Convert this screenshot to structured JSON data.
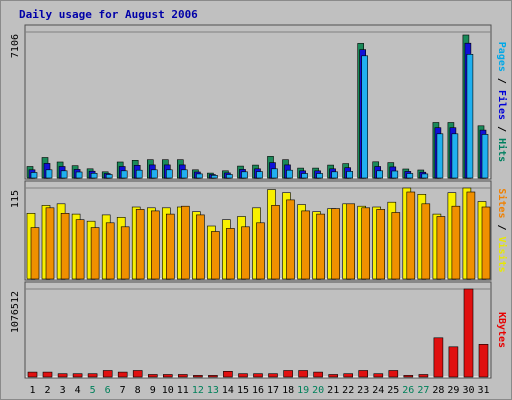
{
  "chart_data": {
    "type": "bar",
    "title": "Daily usage for August 2006",
    "categories": [
      "1",
      "2",
      "3",
      "4",
      "5",
      "6",
      "7",
      "8",
      "9",
      "10",
      "11",
      "12",
      "13",
      "14",
      "15",
      "16",
      "17",
      "18",
      "19",
      "20",
      "21",
      "22",
      "23",
      "24",
      "25",
      "26",
      "27",
      "28",
      "29",
      "30",
      "31"
    ],
    "weekend_days": [
      "5",
      "6",
      "12",
      "13",
      "19",
      "20",
      "26",
      "27"
    ],
    "panels": [
      {
        "id": "hits",
        "ymax": 7106,
        "ymax_label": "7106",
        "right_label": [
          {
            "text": "Pages",
            "color": "#00a8e8"
          },
          {
            "text": " / ",
            "color": "#000000"
          },
          {
            "text": "Files",
            "color": "#0000d8"
          },
          {
            "text": " / ",
            "color": "#000000"
          },
          {
            "text": "Hits",
            "color": "#008060"
          }
        ],
        "series": [
          {
            "name": "Hits",
            "color": "#1a8a5a",
            "values": [
              560,
              1000,
              780,
              600,
              450,
              300,
              780,
              860,
              890,
              890,
              890,
              400,
              240,
              350,
              580,
              630,
              1050,
              890,
              480,
              480,
              630,
              700,
              6550,
              790,
              750,
              440,
              390,
              2700,
              2700,
              6960,
              2540
            ]
          },
          {
            "name": "Files",
            "color": "#1010d8",
            "values": [
              400,
              710,
              560,
              420,
              330,
              220,
              560,
              620,
              640,
              640,
              640,
              290,
              170,
              250,
              420,
              450,
              750,
              640,
              350,
              350,
              450,
              500,
              6250,
              560,
              540,
              320,
              280,
              2450,
              2450,
              6560,
              2330
            ]
          },
          {
            "name": "Pages",
            "color": "#20b0f0",
            "values": [
              270,
              400,
              350,
              290,
              230,
              170,
              350,
              380,
              400,
              400,
              400,
              200,
              130,
              170,
              300,
              310,
              450,
              380,
              220,
              220,
              300,
              320,
              5950,
              350,
              340,
              220,
              200,
              2150,
              2150,
              6020,
              2120
            ]
          }
        ]
      },
      {
        "id": "visits",
        "ymax": 115,
        "ymax_label": "115",
        "right_label": [
          {
            "text": "Sites",
            "color": "#f08000"
          },
          {
            "text": " / ",
            "color": "#000000"
          },
          {
            "text": "Visits",
            "color": "#e8e800"
          }
        ],
        "series": [
          {
            "name": "Visits",
            "color": "#f8f000",
            "values": [
              83,
              93,
              95,
              82,
              73,
              81,
              78,
              91,
              90,
              90,
              91,
              85,
              67,
              75,
              79,
              90,
              113,
              109,
              94,
              85,
              89,
              95,
              92,
              91,
              97,
              115,
              107,
              82,
              109,
              115,
              98
            ]
          },
          {
            "name": "Sites",
            "color": "#f09000",
            "values": [
              65,
              90,
              83,
              75,
              65,
              71,
              66,
              88,
              86,
              82,
              92,
              81,
              60,
              64,
              66,
              71,
              93,
              100,
              86,
              82,
              89,
              95,
              90,
              88,
              84,
              110,
              95,
              79,
              92,
              110,
              91
            ]
          }
        ]
      },
      {
        "id": "kbytes",
        "ymax": 1076512,
        "ymax_label": "1076512",
        "right_label": [
          {
            "text": "KBytes",
            "color": "#e80000"
          }
        ],
        "series": [
          {
            "name": "KBytes",
            "color": "#e01010",
            "values": [
              60000,
              60000,
              40000,
              40000,
              40000,
              80000,
              60000,
              80000,
              30000,
              30000,
              30000,
              20000,
              20000,
              70000,
              40000,
              40000,
              40000,
              80000,
              80000,
              60000,
              30000,
              40000,
              80000,
              40000,
              80000,
              20000,
              30000,
              480000,
              370000,
              1076512,
              400000
            ]
          }
        ]
      }
    ]
  }
}
